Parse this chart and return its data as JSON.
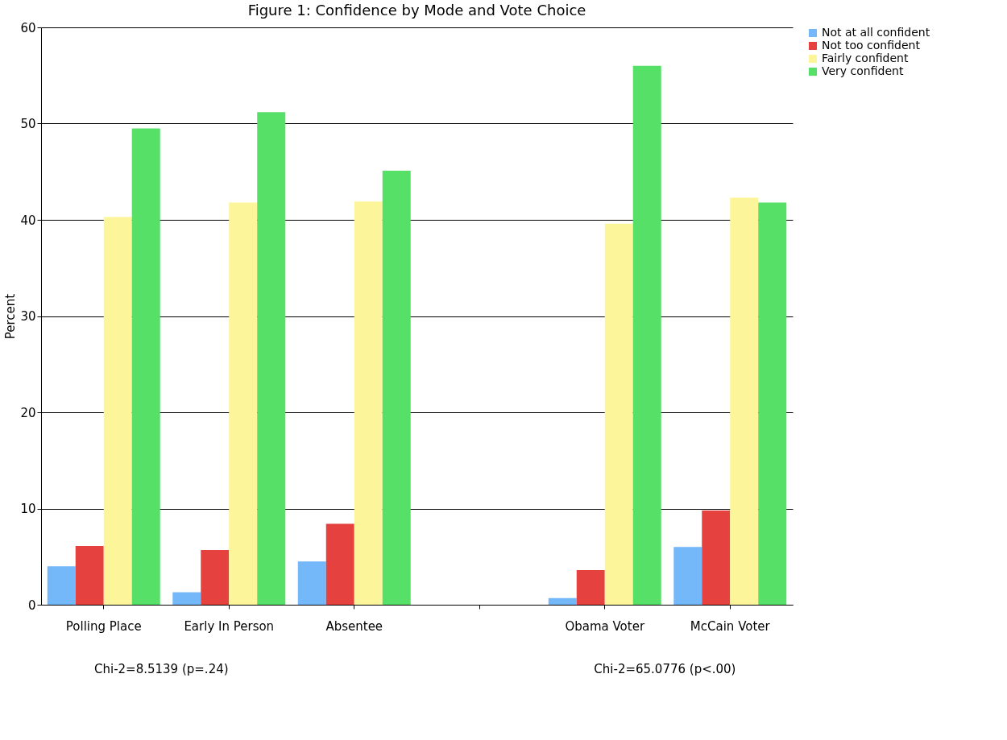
{
  "chart_data": {
    "type": "bar",
    "title": "Figure 1: Confidence by Mode and Vote Choice",
    "ylabel": "Percent",
    "categories": [
      "Polling Place",
      "Early In Person",
      "Absentee",
      null,
      "Obama Voter",
      "McCain Voter"
    ],
    "series": [
      {
        "name": "Not at all confident",
        "color": "#75b8fa",
        "values": [
          4.0,
          1.3,
          4.5,
          null,
          0.7,
          6.0
        ]
      },
      {
        "name": "Not too confident",
        "color": "#e5423f",
        "values": [
          6.1,
          5.7,
          8.4,
          null,
          3.6,
          9.8
        ]
      },
      {
        "name": "Fairly confident",
        "color": "#fdf59a",
        "values": [
          40.3,
          41.8,
          41.9,
          null,
          39.6,
          42.3
        ]
      },
      {
        "name": "Very confident",
        "color": "#57e068",
        "values": [
          49.5,
          51.2,
          45.1,
          null,
          56.0,
          41.8
        ]
      }
    ],
    "ylim": [
      0,
      60
    ],
    "yticks": [
      0,
      10,
      20,
      30,
      40,
      50,
      60
    ],
    "grid": "y",
    "legend": "right",
    "annotations": [
      "Chi-2=8.5139 (p=.24)",
      "Chi-2=65.0776 (p<.00)"
    ]
  }
}
